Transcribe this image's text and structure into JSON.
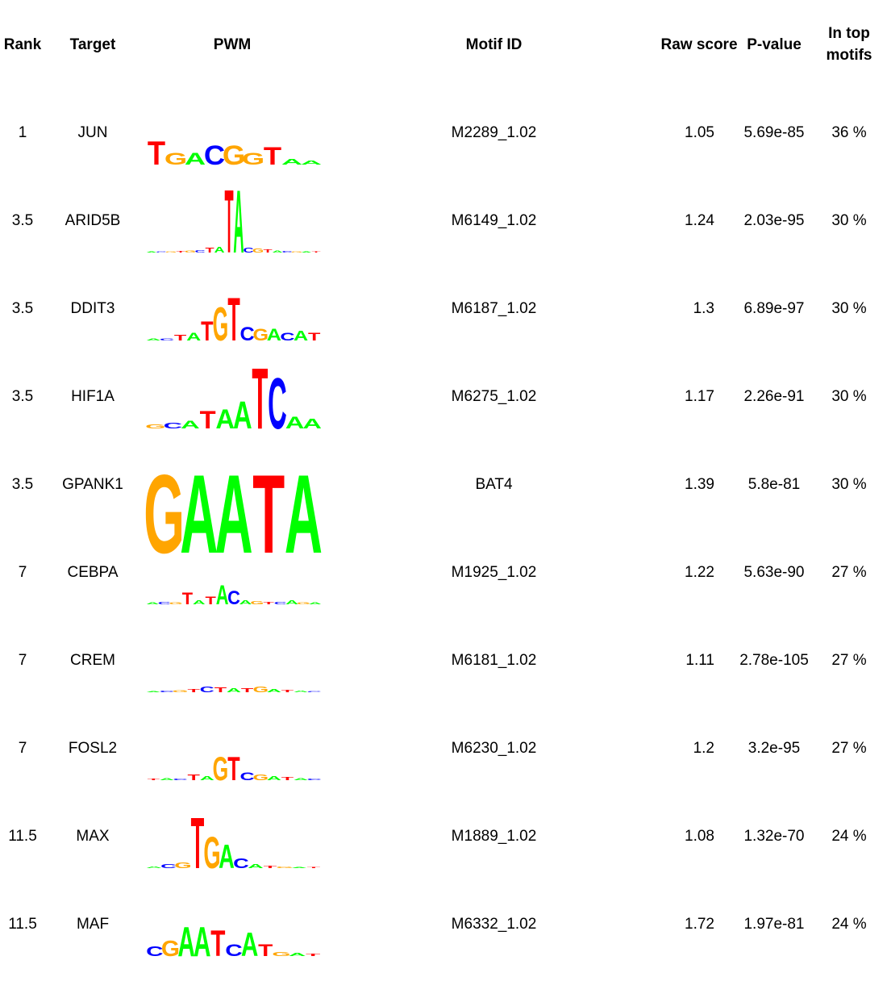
{
  "headers": {
    "rank": "Rank",
    "target": "Target",
    "pwm": "PWM",
    "motif_id": "Motif ID",
    "raw_score": "Raw score",
    "p_value": "P-value",
    "in_top_line1": "In top",
    "in_top_line2": "motifs"
  },
  "colors": {
    "A": "#00ff00",
    "C": "#0000ff",
    "G": "#ffa500",
    "T": "#ff0000"
  },
  "rows": [
    {
      "rank": "1",
      "target": "JUN",
      "motif_id": "M2289_1.02",
      "raw_score": "1.05",
      "p_value": "5.69e-85",
      "in_top": "36 %",
      "logo": [
        [
          "T",
          0.6
        ],
        [
          "G",
          0.3
        ],
        [
          "A",
          0.3
        ],
        [
          "C",
          0.5
        ],
        [
          "G",
          0.5
        ],
        [
          "G",
          0.3
        ],
        [
          "T",
          0.45
        ],
        [
          "A",
          0.15
        ],
        [
          "A",
          0.1
        ]
      ]
    },
    {
      "rank": "3.5",
      "target": "ARID5B",
      "motif_id": "M6149_1.02",
      "raw_score": "1.24",
      "p_value": "2.03e-95",
      "in_top": "30 %",
      "logo": [
        [
          "A",
          0.02
        ],
        [
          "C",
          0.03
        ],
        [
          "G",
          0.02
        ],
        [
          "T",
          0.04
        ],
        [
          "G",
          0.05
        ],
        [
          "C",
          0.06
        ],
        [
          "T",
          0.12
        ],
        [
          "A",
          0.15
        ],
        [
          "T",
          1.6
        ],
        [
          "A",
          1.6
        ],
        [
          "C",
          0.12
        ],
        [
          "G",
          0.1
        ],
        [
          "T",
          0.08
        ],
        [
          "A",
          0.05
        ],
        [
          "C",
          0.04
        ],
        [
          "G",
          0.03
        ],
        [
          "A",
          0.02
        ],
        [
          "T",
          0.02
        ]
      ]
    },
    {
      "rank": "3.5",
      "target": "DDIT3",
      "motif_id": "M6187_1.02",
      "raw_score": "1.3",
      "p_value": "6.89e-97",
      "in_top": "30 %",
      "logo": [
        [
          "A",
          0.05
        ],
        [
          "C",
          0.05
        ],
        [
          "T",
          0.15
        ],
        [
          "A",
          0.2
        ],
        [
          "T",
          0.5
        ],
        [
          "G",
          0.85
        ],
        [
          "T",
          1.1
        ],
        [
          "C",
          0.35
        ],
        [
          "G",
          0.3
        ],
        [
          "A",
          0.3
        ],
        [
          "C",
          0.2
        ],
        [
          "A",
          0.25
        ],
        [
          "T",
          0.2
        ]
      ]
    },
    {
      "rank": "3.5",
      "target": "HIF1A",
      "motif_id": "M6275_1.02",
      "raw_score": "1.17",
      "p_value": "2.26e-91",
      "in_top": "30 %",
      "logo": [
        [
          "G",
          0.1
        ],
        [
          "C",
          0.15
        ],
        [
          "A",
          0.2
        ],
        [
          "T",
          0.45
        ],
        [
          "A",
          0.5
        ],
        [
          "A",
          0.7
        ],
        [
          "T",
          1.55
        ],
        [
          "C",
          1.3
        ],
        [
          "A",
          0.3
        ],
        [
          "A",
          0.25
        ]
      ]
    },
    {
      "rank": "3.5",
      "target": "GPANK1",
      "motif_id": "BAT4",
      "raw_score": "1.39",
      "p_value": "5.8e-81",
      "in_top": "30 %",
      "logo": [
        [
          "G",
          2.0
        ],
        [
          "A",
          2.0
        ],
        [
          "A",
          2.0
        ],
        [
          "T",
          2.0
        ],
        [
          "A",
          2.0
        ]
      ]
    },
    {
      "rank": "7",
      "target": "CEBPA",
      "motif_id": "M1925_1.02",
      "raw_score": "1.22",
      "p_value": "5.63e-90",
      "in_top": "27 %",
      "logo": [
        [
          "A",
          0.05
        ],
        [
          "C",
          0.07
        ],
        [
          "G",
          0.05
        ],
        [
          "T",
          0.3
        ],
        [
          "A",
          0.1
        ],
        [
          "T",
          0.2
        ],
        [
          "A",
          0.5
        ],
        [
          "C",
          0.35
        ],
        [
          "A",
          0.1
        ],
        [
          "G",
          0.08
        ],
        [
          "T",
          0.07
        ],
        [
          "C",
          0.06
        ],
        [
          "A",
          0.1
        ],
        [
          "G",
          0.05
        ],
        [
          "A",
          0.05
        ]
      ]
    },
    {
      "rank": "7",
      "target": "CREM",
      "motif_id": "M6181_1.02",
      "raw_score": "1.11",
      "p_value": "2.78e-105",
      "in_top": "27 %",
      "logo": [
        [
          "A",
          0.03
        ],
        [
          "C",
          0.04
        ],
        [
          "G",
          0.05
        ],
        [
          "T",
          0.08
        ],
        [
          "C",
          0.15
        ],
        [
          "T",
          0.12
        ],
        [
          "A",
          0.1
        ],
        [
          "T",
          0.1
        ],
        [
          "G",
          0.15
        ],
        [
          "A",
          0.08
        ],
        [
          "T",
          0.06
        ],
        [
          "A",
          0.04
        ],
        [
          "C",
          0.03
        ]
      ]
    },
    {
      "rank": "7",
      "target": "FOSL2",
      "motif_id": "M6230_1.02",
      "raw_score": "1.2",
      "p_value": "3.2e-95",
      "in_top": "27 %",
      "logo": [
        [
          "T",
          0.04
        ],
        [
          "A",
          0.05
        ],
        [
          "C",
          0.04
        ],
        [
          "T",
          0.15
        ],
        [
          "A",
          0.1
        ],
        [
          "G",
          0.6
        ],
        [
          "T",
          0.6
        ],
        [
          "C",
          0.2
        ],
        [
          "G",
          0.15
        ],
        [
          "A",
          0.1
        ],
        [
          "T",
          0.08
        ],
        [
          "A",
          0.05
        ],
        [
          "C",
          0.04
        ]
      ]
    },
    {
      "rank": "11.5",
      "target": "MAX",
      "motif_id": "M1889_1.02",
      "raw_score": "1.08",
      "p_value": "1.32e-70",
      "in_top": "24 %",
      "logo": [
        [
          "A",
          0.04
        ],
        [
          "C",
          0.1
        ],
        [
          "G",
          0.15
        ],
        [
          "T",
          1.3
        ],
        [
          "G",
          0.8
        ],
        [
          "A",
          0.6
        ],
        [
          "C",
          0.25
        ],
        [
          "A",
          0.1
        ],
        [
          "T",
          0.06
        ],
        [
          "G",
          0.04
        ],
        [
          "A",
          0.03
        ],
        [
          "T",
          0.03
        ]
      ]
    },
    {
      "rank": "11.5",
      "target": "MAF",
      "motif_id": "M6332_1.02",
      "raw_score": "1.72",
      "p_value": "1.97e-81",
      "in_top": "24 %",
      "logo": [
        [
          "C",
          0.25
        ],
        [
          "G",
          0.4
        ],
        [
          "A",
          0.75
        ],
        [
          "A",
          0.75
        ],
        [
          "T",
          0.65
        ],
        [
          "C",
          0.3
        ],
        [
          "A",
          0.6
        ],
        [
          "T",
          0.3
        ],
        [
          "G",
          0.1
        ],
        [
          "A",
          0.08
        ],
        [
          "T",
          0.06
        ]
      ]
    }
  ],
  "chart_data": {
    "type": "table",
    "columns": [
      "Rank",
      "Target",
      "PWM",
      "Motif ID",
      "Raw score",
      "P-value",
      "In top motifs"
    ],
    "rows": [
      [
        "1",
        "JUN",
        "",
        "M2289_1.02",
        "1.05",
        "5.69e-85",
        "36 %"
      ],
      [
        "3.5",
        "ARID5B",
        "",
        "M6149_1.02",
        "1.24",
        "2.03e-95",
        "30 %"
      ],
      [
        "3.5",
        "DDIT3",
        "",
        "M6187_1.02",
        "1.3",
        "6.89e-97",
        "30 %"
      ],
      [
        "3.5",
        "HIF1A",
        "",
        "M6275_1.02",
        "1.17",
        "2.26e-91",
        "30 %"
      ],
      [
        "3.5",
        "GPANK1",
        "",
        "BAT4",
        "1.39",
        "5.8e-81",
        "30 %"
      ],
      [
        "7",
        "CEBPA",
        "",
        "M1925_1.02",
        "1.22",
        "5.63e-90",
        "27 %"
      ],
      [
        "7",
        "CREM",
        "",
        "M6181_1.02",
        "1.11",
        "2.78e-105",
        "27 %"
      ],
      [
        "7",
        "FOSL2",
        "",
        "M6230_1.02",
        "1.2",
        "3.2e-95",
        "27 %"
      ],
      [
        "11.5",
        "MAX",
        "",
        "M1889_1.02",
        "1.08",
        "1.32e-70",
        "24 %"
      ],
      [
        "11.5",
        "MAF",
        "",
        "M6332_1.02",
        "1.72",
        "1.97e-81",
        "24 %"
      ]
    ]
  }
}
